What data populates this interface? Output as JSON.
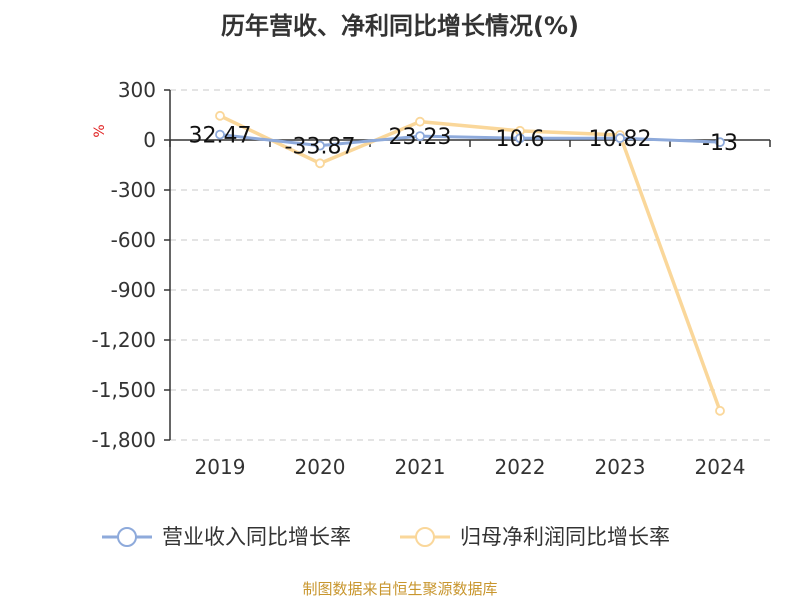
{
  "chart_data": {
    "type": "line",
    "title": "历年营收、净利同比增长情况(%)",
    "unit_label": "%",
    "categories": [
      "2019",
      "2020",
      "2021",
      "2022",
      "2023",
      "2024"
    ],
    "ylim": [
      -1800,
      300
    ],
    "yticks": [
      300,
      0,
      -300,
      -600,
      -900,
      -1200,
      -1500,
      -1800
    ],
    "ytick_labels": [
      "300",
      "0",
      "-300",
      "-600",
      "-900",
      "-1,200",
      "-1,500",
      "-1,800"
    ],
    "grid": true,
    "legend_position": "bottom",
    "series": [
      {
        "name": "营业收入同比增长率",
        "color": "#8eaadb",
        "values": [
          32.47,
          -33.87,
          23.23,
          10.6,
          10.82,
          -13
        ],
        "data_labels": [
          "32.47",
          "-33.87",
          "23.23",
          "10.6",
          "10.82",
          "-13"
        ]
      },
      {
        "name": "归母净利润同比增长率",
        "color": "#fad79a",
        "values": [
          145,
          -140,
          110,
          55,
          30,
          -1625
        ]
      }
    ],
    "source": "制图数据来自恒生聚源数据库"
  }
}
